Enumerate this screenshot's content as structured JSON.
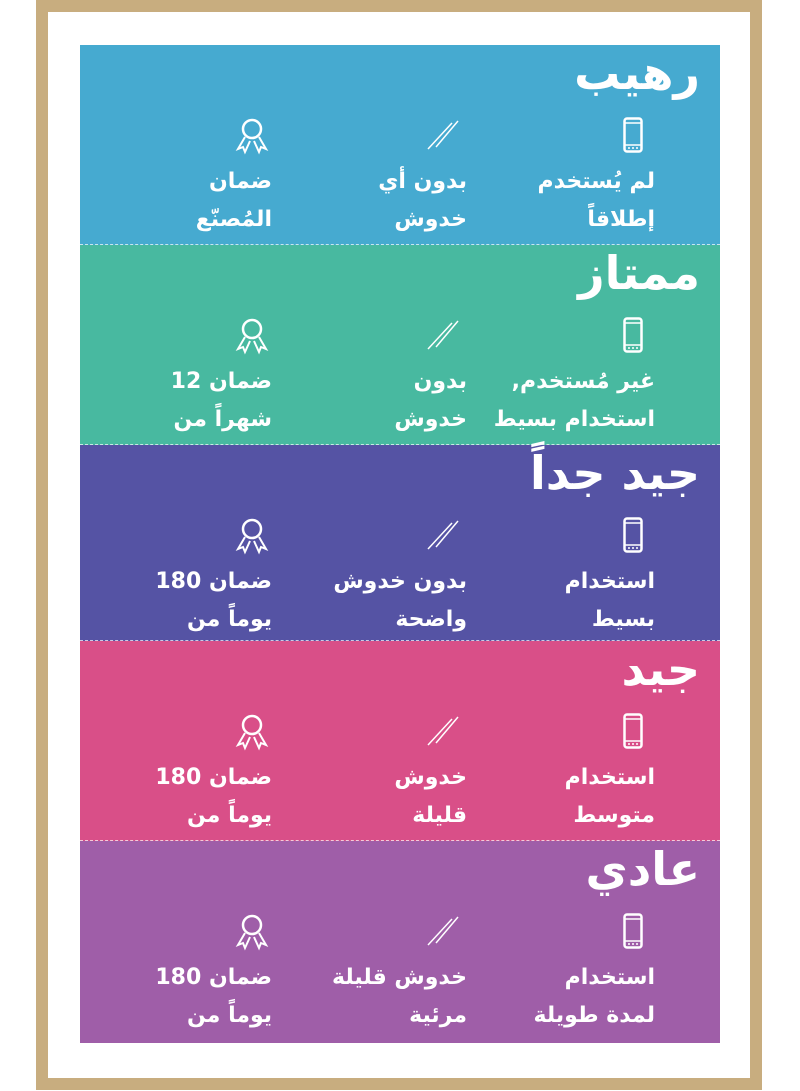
{
  "colors": {
    "frame": "#c8ad7f",
    "bands": [
      "#46aad0",
      "#48b9a0",
      "#5553a4",
      "#d94f88",
      "#9f5ea8"
    ]
  },
  "icons": {
    "usage": "smartphone-icon",
    "scratches": "scratch-lines-icon",
    "warranty": "award-ribbon-icon"
  },
  "grades": [
    {
      "title": "رهيب",
      "usage": [
        "لم يُستخدم",
        "إطلاقاً"
      ],
      "scratches": [
        "بدون أي",
        "خدوش"
      ],
      "warranty": [
        "ضمان",
        "المُصنّع"
      ]
    },
    {
      "title": "ممتاز",
      "usage": [
        "غير مُستخدم,",
        "استخدام بسيط"
      ],
      "scratches": [
        "بدون",
        "خدوش"
      ],
      "warranty": [
        "ضمان 12",
        "شهراً من"
      ]
    },
    {
      "title": "جيد جداً",
      "usage": [
        "استخدام",
        "بسيط"
      ],
      "scratches": [
        "بدون خدوش",
        "واضحة"
      ],
      "warranty": [
        "ضمان 180",
        "يوماً من"
      ]
    },
    {
      "title": "جيد",
      "usage": [
        "استخدام",
        "متوسط"
      ],
      "scratches": [
        "خدوش",
        "قليلة"
      ],
      "warranty": [
        "ضمان 180",
        "يوماً من"
      ]
    },
    {
      "title": "عادي",
      "usage": [
        "استخدام",
        "لمدة طويلة"
      ],
      "scratches": [
        "خدوش قليلة",
        "مرئية"
      ],
      "warranty": [
        "ضمان 180",
        "يوماً من"
      ]
    }
  ]
}
